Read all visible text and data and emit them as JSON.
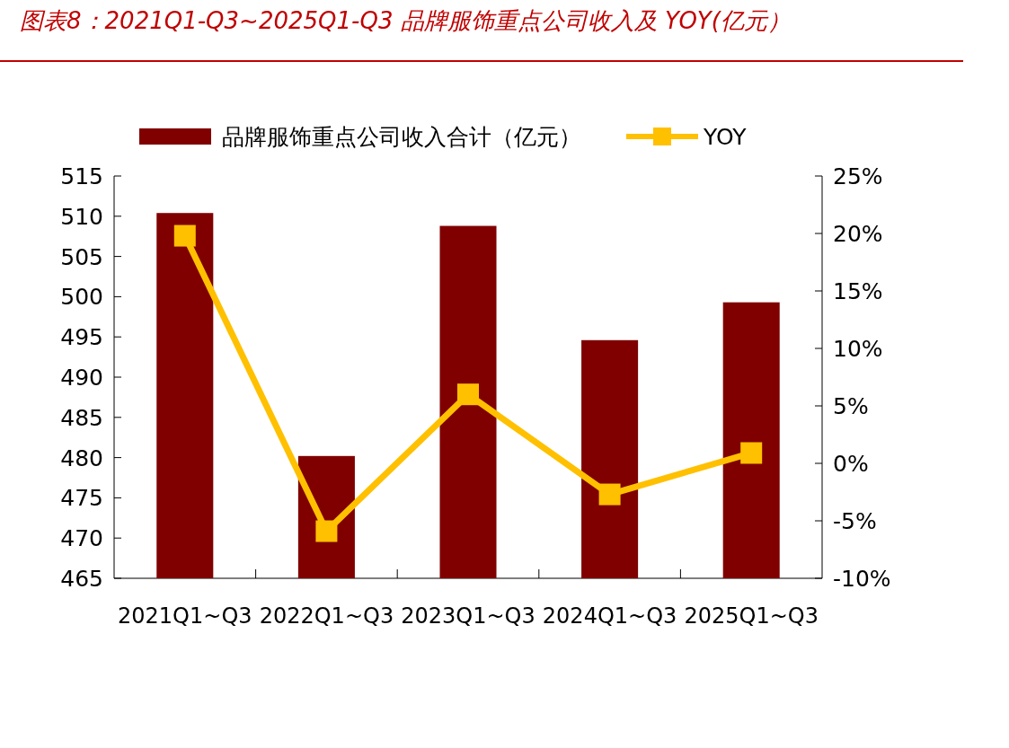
{
  "chart_data": {
    "type": "bar",
    "title": "图表8：2021Q1-Q3~2025Q1-Q3 品牌服饰重点公司收入及 YOY(亿元）",
    "categories": [
      "2021Q1~Q3",
      "2022Q1~Q3",
      "2023Q1~Q3",
      "2024Q1~Q3",
      "2025Q1~Q3"
    ],
    "series": [
      {
        "name": "品牌服饰重点公司收入合计（亿元）",
        "color": "#800000",
        "values": [
          510.4,
          480.2,
          508.8,
          494.6,
          499.3
        ]
      },
      {
        "name": "YOY",
        "type": "line",
        "axis": "y2",
        "color": "#ffc000",
        "marker": "square",
        "values": [
          19.8,
          -5.9,
          6.0,
          -2.7,
          0.9
        ]
      }
    ],
    "ylim": [
      465,
      515
    ],
    "yticks": [
      465,
      470,
      475,
      480,
      485,
      490,
      495,
      500,
      505,
      510,
      515
    ],
    "y2lim": [
      -10,
      25
    ],
    "y2ticks": [
      {
        "value": -10,
        "label": "-10%"
      },
      {
        "value": -5,
        "label": "-5%"
      },
      {
        "value": 0,
        "label": "0%"
      },
      {
        "value": 5,
        "label": "5%"
      },
      {
        "value": 10,
        "label": "10%"
      },
      {
        "value": 15,
        "label": "15%"
      },
      {
        "value": 20,
        "label": "20%"
      },
      {
        "value": 25,
        "label": "25%"
      }
    ],
    "legend": "top",
    "grid": false
  }
}
